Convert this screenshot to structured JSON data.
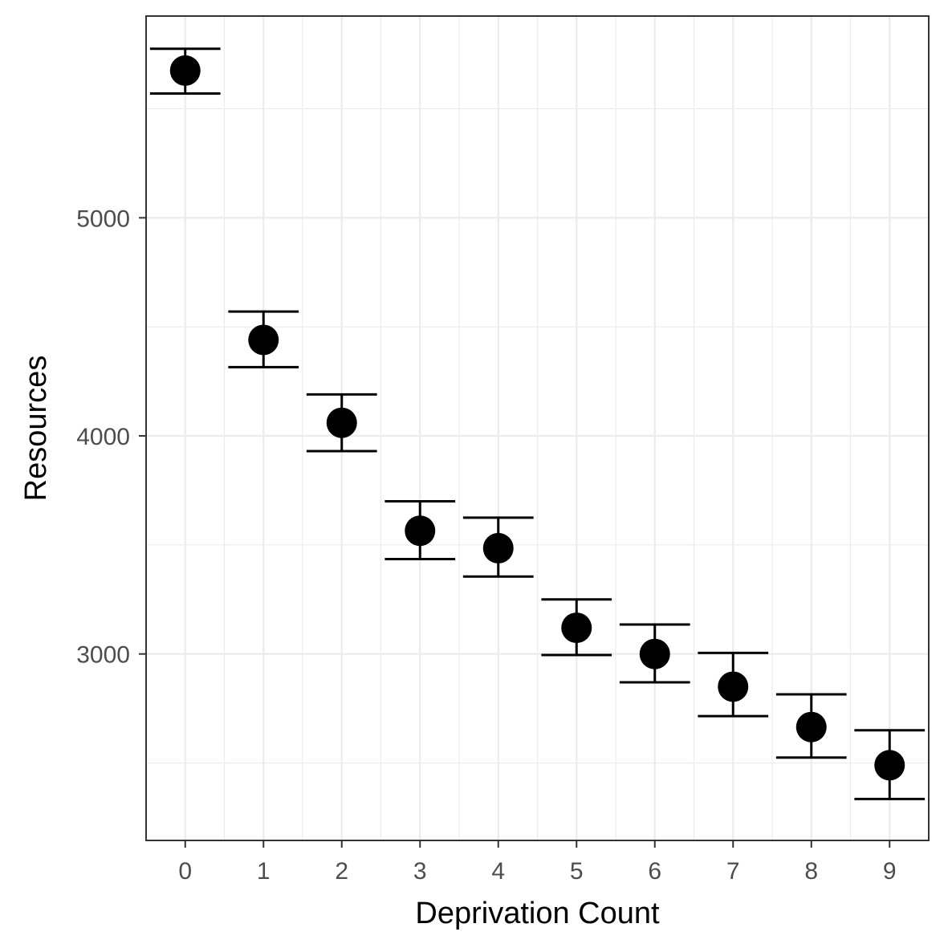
{
  "chart_data": {
    "type": "scatter",
    "xlabel": "Deprivation Count",
    "ylabel": "Resources",
    "x": [
      0,
      1,
      2,
      3,
      4,
      5,
      6,
      7,
      8,
      9
    ],
    "x_tick_labels": [
      "0",
      "1",
      "2",
      "3",
      "4",
      "5",
      "6",
      "7",
      "8",
      "9"
    ],
    "y_ticks": [
      3000,
      4000,
      5000
    ],
    "y_tick_labels": [
      "3000",
      "4000",
      "5000"
    ],
    "xlim": [
      -0.5,
      9.5
    ],
    "ylim": [
      2145,
      5925
    ],
    "grid": true,
    "series": [
      {
        "values": [
          5675,
          4440,
          4060,
          3565,
          3485,
          3120,
          3000,
          2850,
          2665,
          2490
        ],
        "lower": [
          5570,
          4315,
          3930,
          3435,
          3355,
          2995,
          2870,
          2715,
          2525,
          2335
        ],
        "upper": [
          5775,
          4570,
          4190,
          3700,
          3625,
          3250,
          3135,
          3005,
          2815,
          2650
        ]
      }
    ],
    "colors": {
      "point": "#000000",
      "errorbar": "#000000",
      "grid": "#ebebeb",
      "panel_border": "#333333"
    }
  }
}
